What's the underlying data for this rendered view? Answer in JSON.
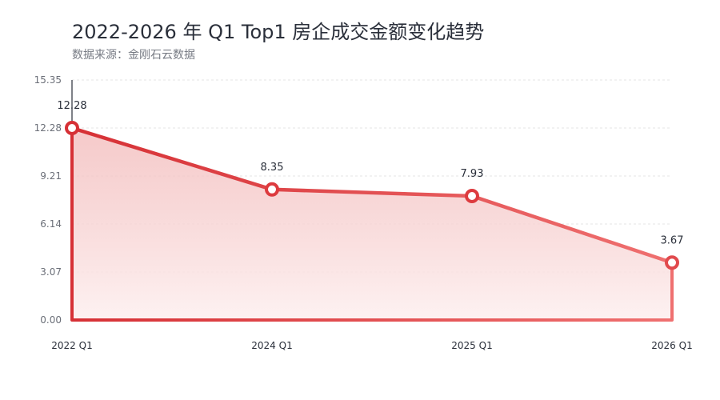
{
  "header": {
    "title": "2022-2026 年 Q1 Top1 房企成交金额变化趋势",
    "subtitle": "数据来源：金刚石云数据"
  },
  "colors": {
    "line_start": "#d63035",
    "line_end": "#ef7070",
    "area_top": "#f2b8b8",
    "area_bottom": "#fdf0f0",
    "grid": "#e6e6e6",
    "text": "#2a2f3a",
    "axis_text": "#6b6f78"
  },
  "chart_data": {
    "type": "area",
    "categories": [
      "2022 Q1",
      "2024 Q1",
      "2025 Q1",
      "2026 Q1"
    ],
    "series": [
      {
        "values": [
          12.28,
          8.35,
          7.93,
          3.67
        ]
      }
    ],
    "data_labels": [
      "12.28",
      "8.35",
      "7.93",
      "3.67"
    ],
    "yticks": [
      "0.00",
      "3.07",
      "6.14",
      "9.21",
      "12.28",
      "15.35"
    ],
    "ylim": [
      0,
      15.35
    ],
    "grid": true,
    "xlabel": "",
    "ylabel": ""
  }
}
